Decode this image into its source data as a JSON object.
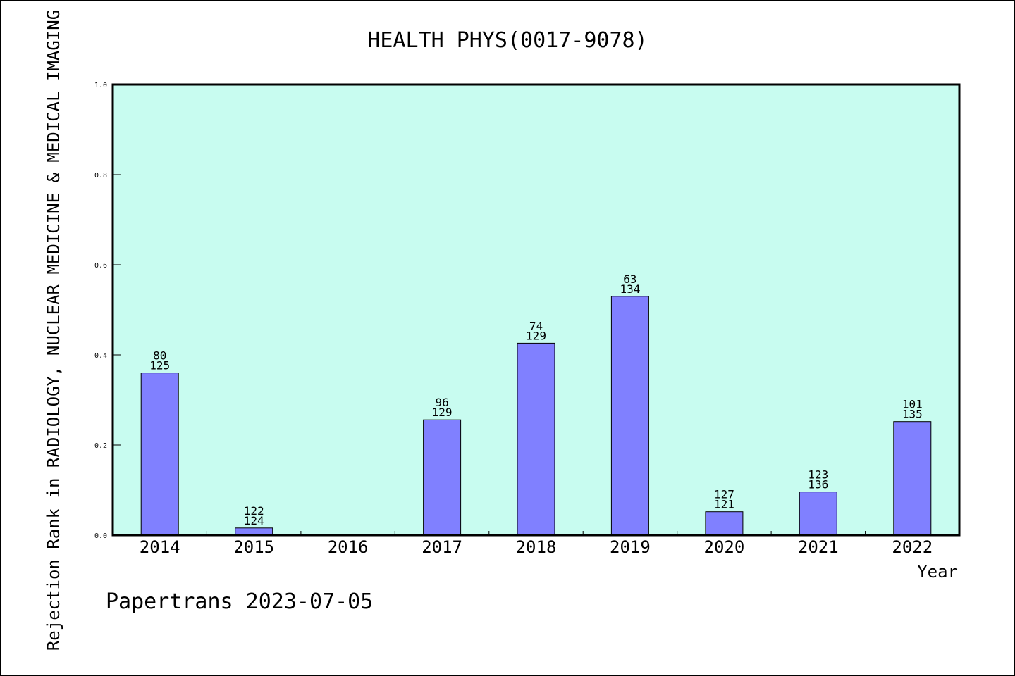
{
  "chart_data": {
    "type": "bar",
    "title": "HEALTH PHYS(0017-9078)",
    "xlabel": "Year",
    "ylabel": "Rejection Rank in RADIOLOGY, NUCLEAR MEDICINE & MEDICAL IMAGING",
    "categories": [
      "2014",
      "2015",
      "2016",
      "2017",
      "2018",
      "2019",
      "2020",
      "2021",
      "2022"
    ],
    "values": [
      0.36,
      0.016,
      null,
      0.256,
      0.426,
      0.53,
      0.052,
      0.096,
      0.252
    ],
    "label_top": [
      "80",
      "122",
      "",
      "96",
      "74",
      "63",
      "127",
      "123",
      "101"
    ],
    "label_bottom": [
      "125",
      "124",
      "",
      "129",
      "129",
      "134",
      "121",
      "136",
      "135"
    ],
    "ylim": [
      0,
      1.0
    ],
    "yticks": [
      "0.0",
      "0.2",
      "0.4",
      "0.6",
      "0.8",
      "1.0"
    ],
    "grid": false,
    "plot_background": "#c8fcf0",
    "bar_color": "#8080ff",
    "credit": "Papertrans 2023-07-05"
  }
}
